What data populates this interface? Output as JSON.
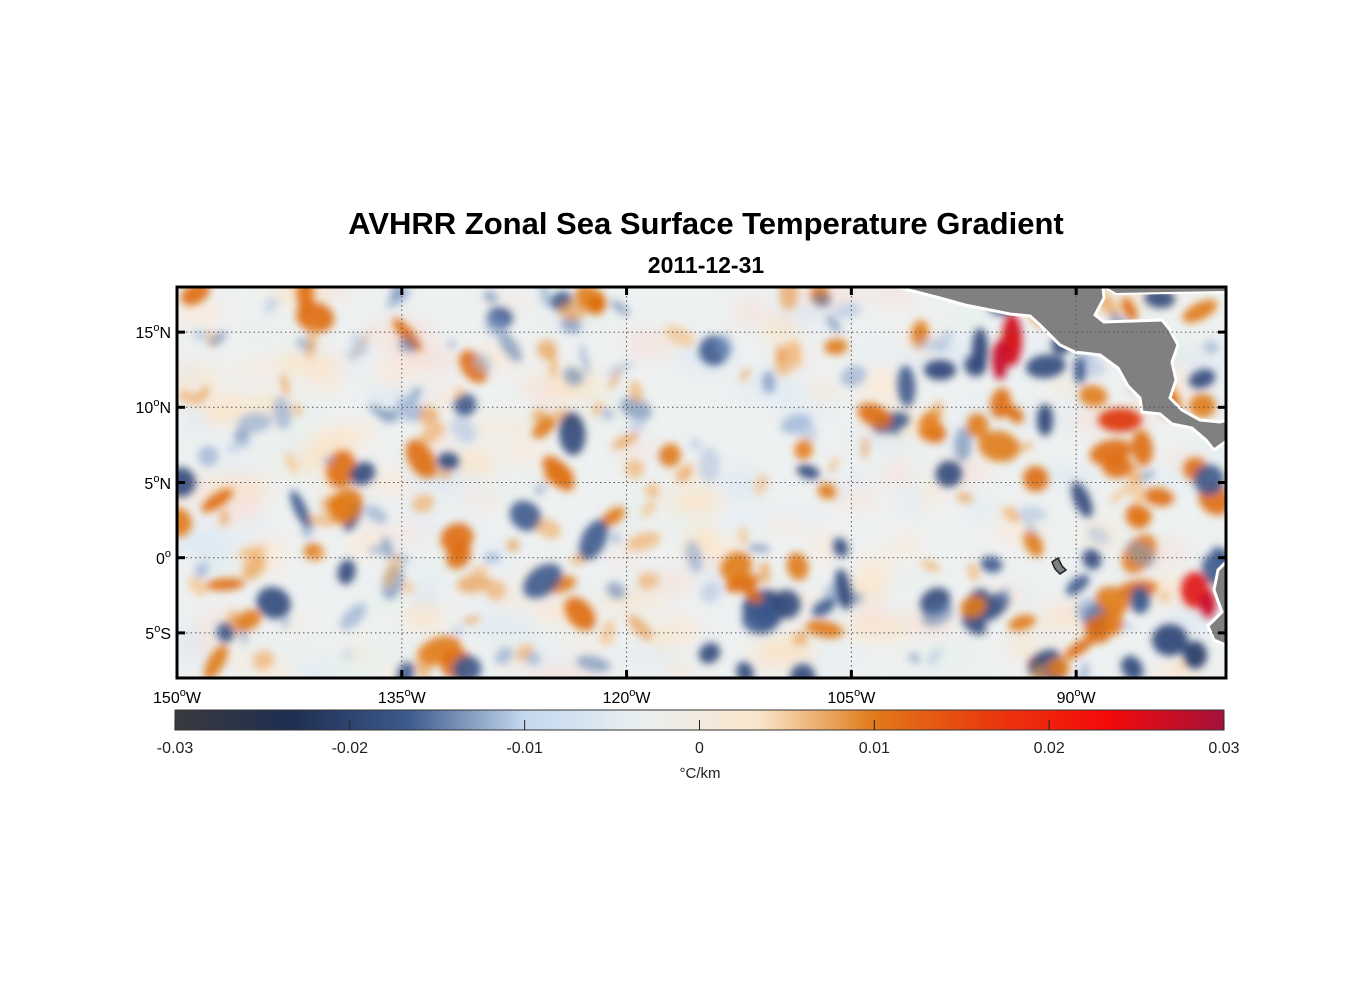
{
  "figure": {
    "title": "AVHRR Zonal Sea Surface Temperature Gradient",
    "subtitle": "2011-12-31"
  },
  "map": {
    "lon_range": [
      -150,
      -80
    ],
    "lat_range": [
      -8,
      18
    ],
    "grid": true,
    "land_color": "#808080",
    "lat_ticks": [
      {
        "value": 15,
        "label": "15",
        "suffix": "N"
      },
      {
        "value": 10,
        "label": "10",
        "suffix": "N"
      },
      {
        "value": 5,
        "label": "5",
        "suffix": "N"
      },
      {
        "value": 0,
        "label": "0",
        "suffix": ""
      },
      {
        "value": -5,
        "label": "5",
        "suffix": "S"
      }
    ],
    "lon_ticks": [
      {
        "value": -150,
        "label": "150",
        "suffix": "W"
      },
      {
        "value": -135,
        "label": "135",
        "suffix": "W"
      },
      {
        "value": -120,
        "label": "120",
        "suffix": "W"
      },
      {
        "value": -105,
        "label": "105",
        "suffix": "W"
      },
      {
        "value": -90,
        "label": "90",
        "suffix": "W"
      }
    ]
  },
  "colorbar": {
    "range": [
      -0.03,
      0.03
    ],
    "ticks": [
      "-0.03",
      "-0.02",
      "-0.01",
      "0",
      "0.01",
      "0.02",
      "0.03"
    ],
    "label": "°C/km",
    "colors": [
      "#3a3a3e",
      "#1e2e52",
      "#3d5a8c",
      "#c4d8ef",
      "#e9f0f1",
      "#fae6cc",
      "#e07a18",
      "#ea3a0e",
      "#f40a0a",
      "#a4123a"
    ]
  }
}
